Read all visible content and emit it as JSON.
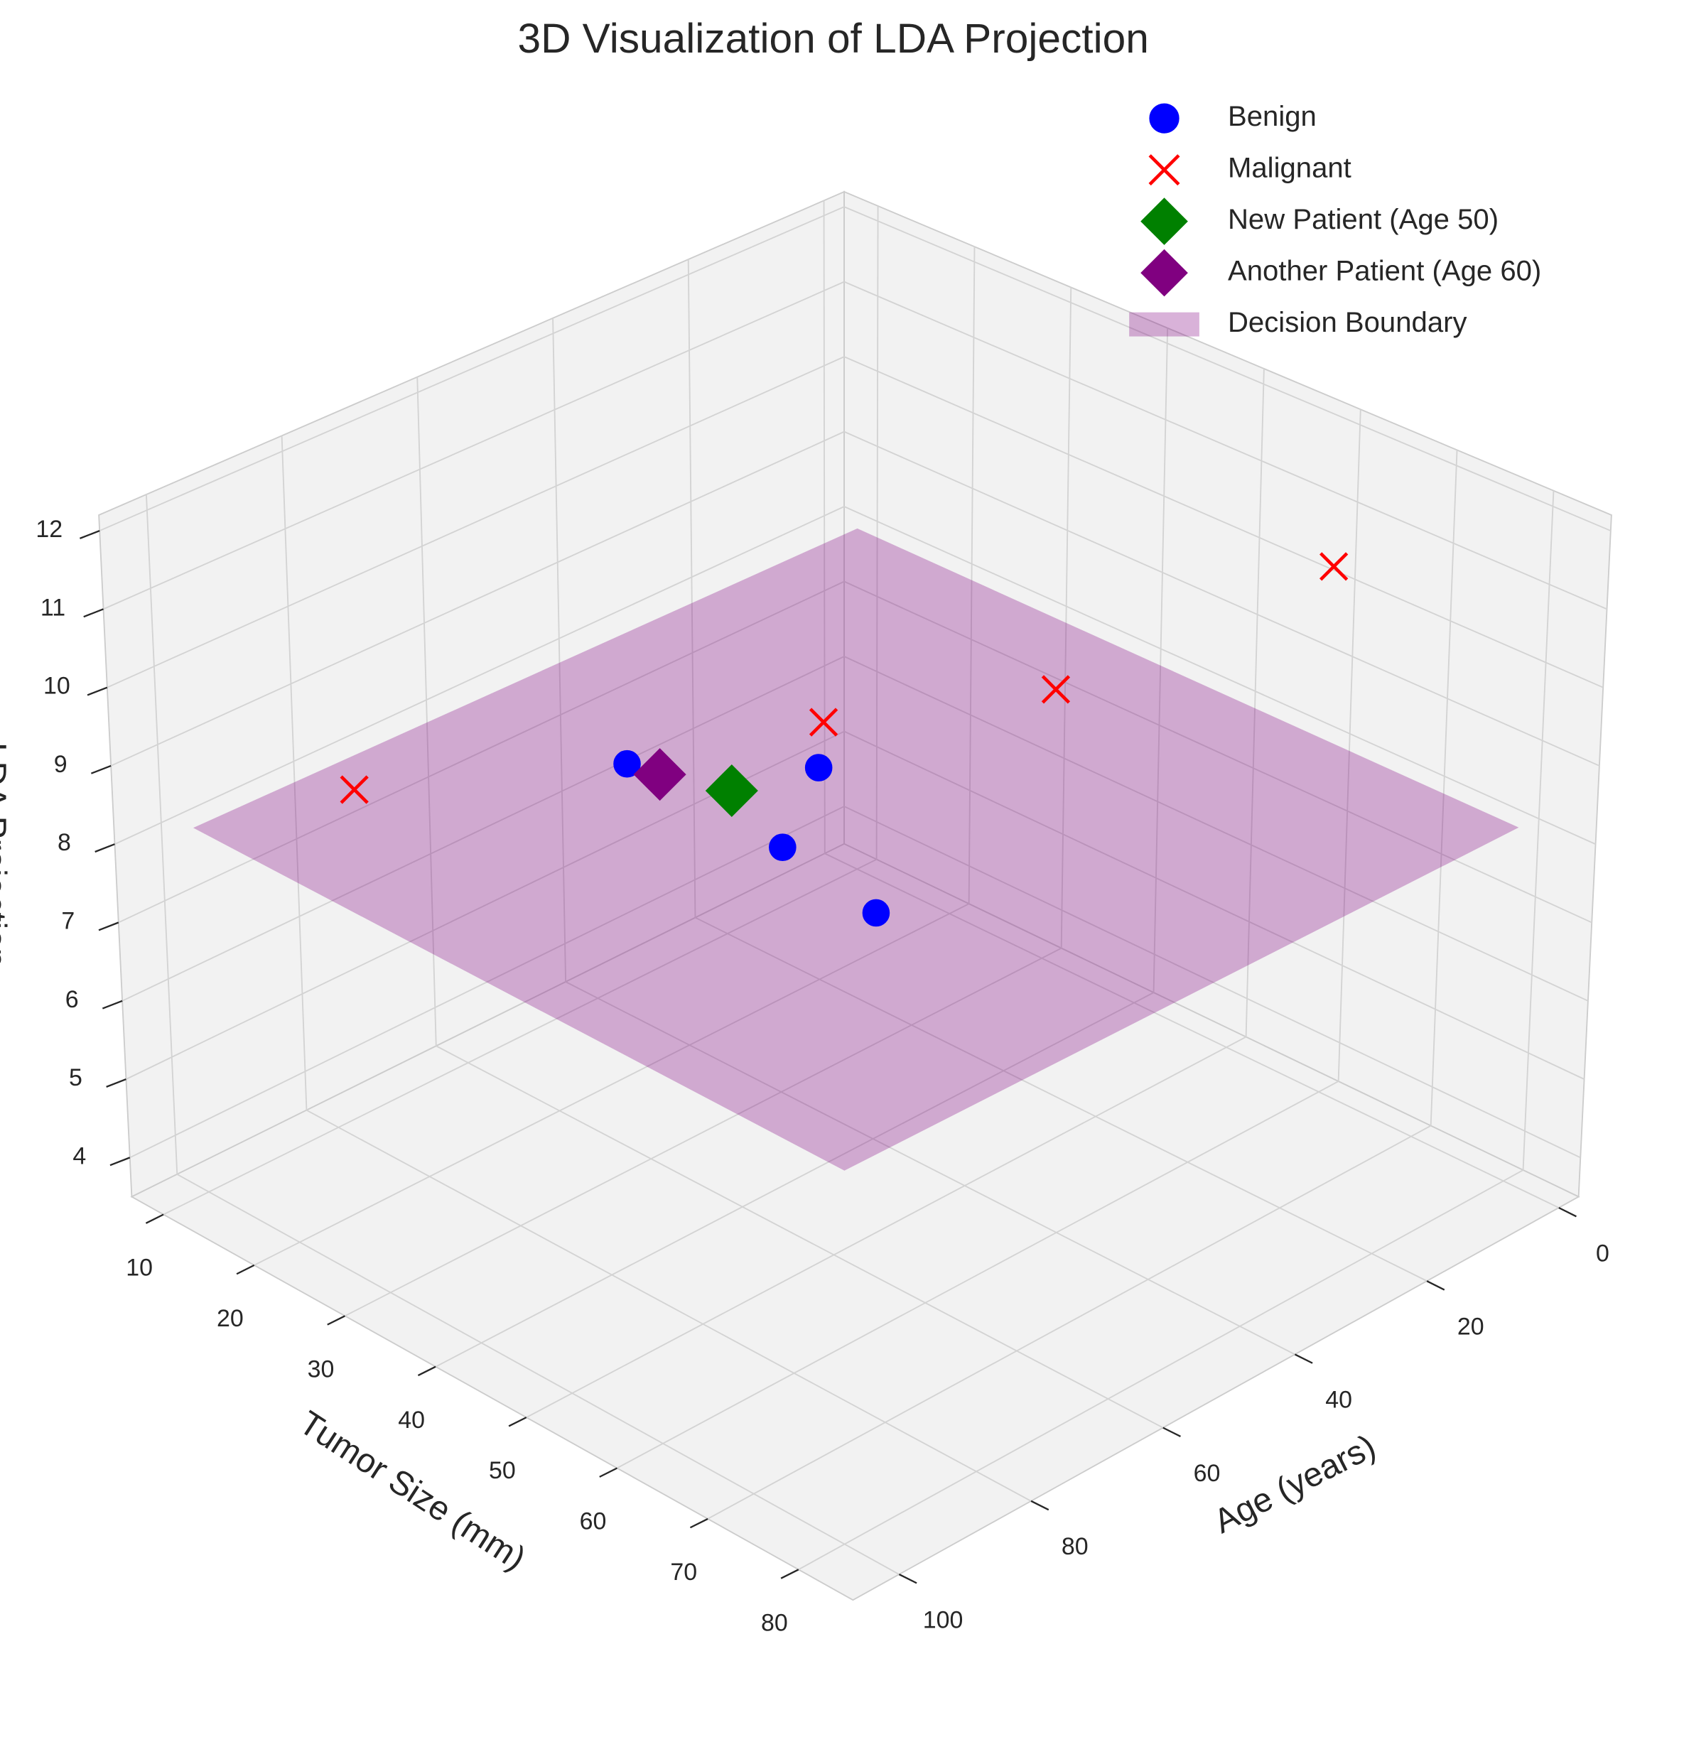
{
  "chart_data": {
    "type": "scatter3d",
    "title": "3D Visualization of LDA Projection",
    "x_label": "Age (years)",
    "y_label": "Tumor Size (mm)",
    "z_label": "LDA Projection",
    "xlim": [
      -3,
      107
    ],
    "ylim": [
      6.5,
      86
    ],
    "zlim": [
      3.5,
      12.2
    ],
    "xticks": [
      0,
      20,
      40,
      60,
      80,
      100
    ],
    "yticks": [
      10,
      20,
      30,
      40,
      50,
      60,
      70,
      80
    ],
    "zticks": [
      4,
      5,
      6,
      7,
      8,
      9,
      10,
      11,
      12
    ],
    "grid": true,
    "legend": "upper right",
    "series": [
      {
        "name": "Benign",
        "color": "#0000ff",
        "marker": "circle",
        "x": [
          40,
          25,
          35,
          30
        ],
        "y": [
          13.6,
          23.5,
          26.7,
          33.2
        ],
        "z": [
          6.78,
          6.69,
          6.26,
          5.58
        ]
      },
      {
        "name": "Malignant",
        "color": "#ff0000",
        "marker": "x",
        "x": [
          80,
          55,
          45,
          20
        ],
        "y": [
          13,
          45.4,
          62.7,
          73.7
        ],
        "z": [
          8.03,
          9.79,
          10.77,
          11.88
        ]
      },
      {
        "name": "New Patient (Age 50)",
        "color": "#008000",
        "marker": "diamond",
        "x": [
          50
        ],
        "y": [
          32
        ],
        "z": [
          7.93
        ]
      },
      {
        "name": "Another Patient (Age 60)",
        "color": "#800080",
        "marker": "diamond",
        "x": [
          60
        ],
        "y": [
          31.5
        ],
        "z": [
          8.52
        ]
      }
    ],
    "surface": {
      "name": "Decision Boundary",
      "color": "#800080",
      "alpha": 0.3,
      "x": [
        0,
        100
      ],
      "y": [
        10,
        80
      ],
      "z": [
        [
          8.03,
          8.02
        ],
        [
          8.15,
          8.09
        ]
      ]
    }
  }
}
